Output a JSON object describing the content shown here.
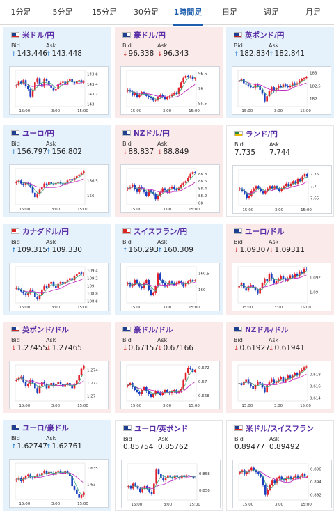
{
  "tabs": [
    {
      "label": "1分足",
      "active": false
    },
    {
      "label": "5分足",
      "active": false
    },
    {
      "label": "15分足",
      "active": false
    },
    {
      "label": "30分足",
      "active": false
    },
    {
      "label": "1時間足",
      "active": true
    },
    {
      "label": "日足",
      "active": false
    },
    {
      "label": "週足",
      "active": false
    },
    {
      "label": "月足",
      "active": false
    }
  ],
  "labels": {
    "bid": "Bid",
    "ask": "Ask"
  },
  "colors": {
    "up": "#1d73c9",
    "down": "#cc2a2a",
    "candle_up": "#e0202a",
    "candle_down": "#1a3fbf",
    "ma_fast": "#3aa67a",
    "ma_slow": "#c030c0",
    "pair_text": "#5a2ea6",
    "active_tab": "#1f5fae"
  },
  "x_ticks": [
    "15:00",
    "3:00",
    "15:00"
  ],
  "cards": [
    {
      "pair": "米ドル/円",
      "bid": "143.446",
      "ask": "143.448",
      "bid_dir": "up",
      "ask_dir": "up",
      "flag": "us-flag-icon",
      "chart_data": {
        "type": "candlestick",
        "yticks": [
          143.6,
          143.4,
          143.2,
          143
        ],
        "ylim": [
          142.95,
          143.68
        ],
        "x_ticks": [
          "15:00",
          "3:00",
          "15:00"
        ],
        "close": [
          143.38,
          143.45,
          143.42,
          143.48,
          143.36,
          143.3,
          143.15,
          143.28,
          143.44,
          143.52,
          143.4,
          143.35,
          143.5,
          143.46,
          143.38,
          143.33,
          143.28,
          143.3,
          143.4,
          143.43,
          143.45,
          143.41,
          143.47,
          143.5,
          143.44,
          143.42,
          143.46,
          143.48,
          143.44,
          143.45
        ]
      }
    },
    {
      "pair": "豪ドル/円",
      "bid": "96.338",
      "ask": "96.343",
      "bid_dir": "down",
      "ask_dir": "down",
      "flag": "australia-flag-icon",
      "chart_data": {
        "type": "candlestick",
        "yticks": [
          96.5,
          96,
          95.5
        ],
        "ylim": [
          95.4,
          96.6
        ],
        "x_ticks": [
          "15:00",
          "3:00",
          "15:00"
        ],
        "close": [
          95.95,
          95.9,
          95.78,
          95.85,
          95.72,
          95.8,
          95.88,
          95.82,
          95.75,
          95.7,
          95.68,
          95.6,
          95.62,
          95.7,
          95.78,
          95.72,
          95.65,
          95.7,
          95.74,
          95.8,
          95.85,
          95.82,
          96.0,
          96.2,
          96.35,
          96.42,
          96.38,
          96.4,
          96.3,
          96.34
        ]
      }
    },
    {
      "pair": "英ポンド/円",
      "bid": "182.834",
      "ask": "182.841",
      "bid_dir": "up",
      "ask_dir": "up",
      "flag": "uk-flag-icon",
      "chart_data": {
        "type": "candlestick",
        "yticks": [
          183,
          182.5,
          182
        ],
        "ylim": [
          181.7,
          183.1
        ],
        "x_ticks": [
          "15:00",
          "3:00",
          "15:00"
        ],
        "close": [
          182.7,
          182.75,
          182.6,
          182.55,
          182.5,
          182.45,
          182.4,
          182.55,
          182.5,
          182.35,
          182.2,
          181.9,
          182.1,
          182.3,
          182.45,
          182.3,
          182.4,
          182.5,
          182.45,
          182.55,
          182.5,
          182.45,
          182.5,
          182.6,
          182.55,
          182.6,
          182.7,
          182.75,
          182.8,
          182.83
        ]
      }
    },
    {
      "pair": "ユーロ/円",
      "bid": "156.797",
      "ask": "156.802",
      "bid_dir": "up",
      "ask_dir": "up",
      "flag": "eu-flag-icon",
      "chart_data": {
        "type": "candlestick",
        "yticks": [
          156.5,
          156
        ],
        "ylim": [
          155.7,
          156.9
        ],
        "x_ticks": [
          "15:00",
          "3:00",
          "15:00"
        ],
        "close": [
          156.45,
          156.5,
          156.4,
          156.35,
          156.42,
          156.38,
          156.3,
          156.1,
          155.95,
          156.05,
          156.2,
          156.3,
          156.4,
          156.35,
          156.45,
          156.4,
          156.38,
          156.42,
          156.45,
          156.4,
          156.38,
          156.42,
          156.5,
          156.55,
          156.5,
          156.6,
          156.65,
          156.7,
          156.75,
          156.8
        ]
      }
    },
    {
      "pair": "NZドル/円",
      "bid": "88.837",
      "ask": "88.849",
      "bid_dir": "down",
      "ask_dir": "down",
      "flag": "nz-flag-icon",
      "chart_data": {
        "type": "candlestick",
        "yticks": [
          88.8,
          88.6,
          88.4,
          88.2,
          88
        ],
        "ylim": [
          87.95,
          88.95
        ],
        "x_ticks": [
          "15:00",
          "3:00",
          "15:00"
        ],
        "close": [
          88.4,
          88.45,
          88.5,
          88.38,
          88.3,
          88.45,
          88.4,
          88.3,
          88.2,
          88.35,
          88.3,
          88.25,
          88.1,
          88.2,
          88.3,
          88.4,
          88.35,
          88.3,
          88.4,
          88.45,
          88.38,
          88.35,
          88.42,
          88.5,
          88.55,
          88.6,
          88.7,
          88.8,
          88.85,
          88.84
        ]
      }
    },
    {
      "pair": "ランド/円",
      "bid": "7.735",
      "ask": "7.744",
      "bid_dir": "none",
      "ask_dir": "none",
      "flag": "south-africa-flag-icon",
      "chart_data": {
        "type": "candlestick",
        "yticks": [
          7.75,
          7.7,
          7.65
        ],
        "ylim": [
          7.62,
          7.77
        ],
        "x_ticks": [
          "15:00",
          "3:00",
          "15:00"
        ],
        "close": [
          7.69,
          7.68,
          7.67,
          7.65,
          7.66,
          7.68,
          7.69,
          7.7,
          7.69,
          7.68,
          7.67,
          7.68,
          7.69,
          7.7,
          7.69,
          7.7,
          7.69,
          7.68,
          7.69,
          7.7,
          7.71,
          7.7,
          7.71,
          7.72,
          7.71,
          7.73,
          7.72,
          7.74,
          7.75,
          7.74
        ]
      }
    },
    {
      "pair": "カナダドル/円",
      "bid": "109.315",
      "ask": "109.330",
      "bid_dir": "up",
      "ask_dir": "up",
      "flag": "canada-flag-icon",
      "chart_data": {
        "type": "candlestick",
        "yticks": [
          109.4,
          109.2,
          109,
          108.8,
          108.6
        ],
        "ylim": [
          108.55,
          109.5
        ],
        "x_ticks": [
          "15:00",
          "3:00",
          "15:00"
        ],
        "close": [
          108.95,
          108.9,
          108.85,
          108.8,
          108.75,
          108.8,
          108.9,
          108.85,
          108.7,
          108.65,
          108.75,
          108.9,
          109.0,
          108.95,
          109.05,
          109.1,
          109.0,
          108.95,
          109.05,
          109.1,
          109.05,
          109.1,
          109.15,
          109.2,
          109.15,
          109.25,
          109.3,
          109.35,
          109.3,
          109.32
        ]
      }
    },
    {
      "pair": "スイスフラン/円",
      "bid": "160.293",
      "ask": "160.309",
      "bid_dir": "up",
      "ask_dir": "up",
      "flag": "swiss-flag-icon",
      "chart_data": {
        "type": "candlestick",
        "yticks": [
          160.5,
          160
        ],
        "ylim": [
          159.6,
          160.7
        ],
        "x_ticks": [
          "15:00",
          "3:00",
          "15:00"
        ],
        "close": [
          160.2,
          160.1,
          160.15,
          160.3,
          160.2,
          160.1,
          160.05,
          160.2,
          160.3,
          160.0,
          159.85,
          159.9,
          160.1,
          160.5,
          160.3,
          160.2,
          160.1,
          160.15,
          160.25,
          160.2,
          160.15,
          160.2,
          160.25,
          160.2,
          160.1,
          160.2,
          160.25,
          160.3,
          160.28,
          160.29
        ]
      }
    },
    {
      "pair": "ユーロ/ドル",
      "bid": "1.09307",
      "ask": "1.09311",
      "bid_dir": "down",
      "ask_dir": "down",
      "flag": "eu-flag-icon",
      "chart_data": {
        "type": "candlestick",
        "yticks": [
          1.092,
          1.09
        ],
        "ylim": [
          1.0885,
          1.0935
        ],
        "x_ticks": [
          "15:00",
          "3:00",
          "15:00"
        ],
        "close": [
          1.0908,
          1.0912,
          1.0905,
          1.0902,
          1.0908,
          1.091,
          1.0906,
          1.0903,
          1.0898,
          1.0905,
          1.0912,
          1.0918,
          1.0915,
          1.0925,
          1.0918,
          1.0912,
          1.0915,
          1.0918,
          1.0922,
          1.0918,
          1.0916,
          1.0919,
          1.0923,
          1.092,
          1.0925,
          1.0922,
          1.0928,
          1.0926,
          1.0932,
          1.0931
        ]
      }
    },
    {
      "pair": "英ポンド/ドル",
      "bid": "1.27455",
      "ask": "1.27465",
      "bid_dir": "down",
      "ask_dir": "down",
      "flag": "uk-flag-icon",
      "chart_data": {
        "type": "candlestick",
        "yticks": [
          1.274,
          1.272,
          1.27
        ],
        "ylim": [
          1.2692,
          1.2748
        ],
        "x_ticks": [
          "15:00",
          "3:00",
          "15:00"
        ],
        "close": [
          1.2725,
          1.2728,
          1.273,
          1.2722,
          1.2715,
          1.2718,
          1.2725,
          1.272,
          1.2712,
          1.2705,
          1.2715,
          1.2722,
          1.2718,
          1.2712,
          1.2716,
          1.272,
          1.2715,
          1.2718,
          1.2722,
          1.2718,
          1.2714,
          1.2717,
          1.272,
          1.2716,
          1.2712,
          1.2718,
          1.2724,
          1.2732,
          1.2742,
          1.2746
        ]
      }
    },
    {
      "pair": "豪ドル/ドル",
      "bid": "0.67157",
      "ask": "0.67166",
      "bid_dir": "down",
      "ask_dir": "down",
      "flag": "australia-flag-icon",
      "chart_data": {
        "type": "candlestick",
        "yticks": [
          0.672,
          0.67,
          0.668
        ],
        "ylim": [
          0.6672,
          0.6724
        ],
        "x_ticks": [
          "15:00",
          "3:00",
          "15:00"
        ],
        "close": [
          0.6695,
          0.6698,
          0.6692,
          0.6688,
          0.6685,
          0.6682,
          0.6688,
          0.6692,
          0.6686,
          0.6682,
          0.6678,
          0.6682,
          0.6686,
          0.6684,
          0.6681,
          0.6684,
          0.6688,
          0.6685,
          0.6683,
          0.6686,
          0.6688,
          0.6684,
          0.6686,
          0.669,
          0.6702,
          0.6712,
          0.672,
          0.6718,
          0.6714,
          0.6716
        ]
      }
    },
    {
      "pair": "NZドル/ドル",
      "bid": "0.61927",
      "ask": "0.61941",
      "bid_dir": "down",
      "ask_dir": "down",
      "flag": "nz-flag-icon",
      "chart_data": {
        "type": "candlestick",
        "yticks": [
          0.618,
          0.616,
          0.614
        ],
        "ylim": [
          0.6135,
          0.6196
        ],
        "x_ticks": [
          "15:00",
          "3:00",
          "15:00"
        ],
        "close": [
          0.6165,
          0.6162,
          0.6168,
          0.6172,
          0.6165,
          0.616,
          0.6155,
          0.6162,
          0.6168,
          0.6165,
          0.6158,
          0.615,
          0.6162,
          0.6168,
          0.6172,
          0.6165,
          0.6168,
          0.6172,
          0.6175,
          0.6168,
          0.6172,
          0.6178,
          0.6174,
          0.6178,
          0.6182,
          0.6178,
          0.6185,
          0.6188,
          0.6192,
          0.6193
        ]
      }
    },
    {
      "pair": "ユーロ/豪ドル",
      "bid": "1.62747",
      "ask": "1.62761",
      "bid_dir": "up",
      "ask_dir": "up",
      "flag": "eu-flag-icon",
      "chart_data": {
        "type": "candlestick",
        "yticks": [
          1.635,
          1.63
        ],
        "ylim": [
          1.6255,
          1.6365
        ],
        "x_ticks": [
          "15:00",
          "3:00",
          "15:00"
        ],
        "close": [
          1.6315,
          1.632,
          1.631,
          1.6318,
          1.6325,
          1.633,
          1.6322,
          1.6318,
          1.6325,
          1.633,
          1.6328,
          1.6335,
          1.634,
          1.6332,
          1.6338,
          1.6335,
          1.633,
          1.6338,
          1.6342,
          1.6336,
          1.6332,
          1.634,
          1.6335,
          1.6325,
          1.6295,
          1.6285,
          1.627,
          1.626,
          1.6268,
          1.6275
        ]
      }
    },
    {
      "pair": "ユーロ/英ポンド",
      "bid": "0.85754",
      "ask": "0.85762",
      "bid_dir": "none",
      "ask_dir": "none",
      "flag": "eu-flag-icon",
      "chart_data": {
        "type": "candlestick",
        "yticks": [
          0.858,
          0.856
        ],
        "ylim": [
          0.8548,
          0.8592
        ],
        "x_ticks": [
          "15:00",
          "3:00",
          "15:00"
        ],
        "close": [
          0.8565,
          0.8562,
          0.8568,
          0.8565,
          0.8562,
          0.8558,
          0.8562,
          0.8565,
          0.8562,
          0.8558,
          0.8555,
          0.8568,
          0.8585,
          0.858,
          0.8575,
          0.8572,
          0.8575,
          0.8578,
          0.8576,
          0.8574,
          0.8578,
          0.8576,
          0.8574,
          0.8578,
          0.8576,
          0.8578,
          0.8577,
          0.8576,
          0.8575,
          0.8575
        ]
      }
    },
    {
      "pair": "米ドル/スイスフラン",
      "bid": "0.89477",
      "ask": "0.89492",
      "bid_dir": "none",
      "ask_dir": "none",
      "flag": "us-flag-icon",
      "chart_data": {
        "type": "candlestick",
        "yticks": [
          0.896,
          0.894,
          0.892
        ],
        "ylim": [
          0.8912,
          0.8968
        ],
        "x_ticks": [
          "15:00",
          "3:00",
          "15:00"
        ],
        "close": [
          0.8955,
          0.8958,
          0.8952,
          0.8955,
          0.8958,
          0.8962,
          0.8958,
          0.8955,
          0.8952,
          0.8948,
          0.8935,
          0.892,
          0.8928,
          0.8935,
          0.8942,
          0.8938,
          0.8945,
          0.8948,
          0.8944,
          0.8942,
          0.8946,
          0.8948,
          0.8944,
          0.8946,
          0.895,
          0.8946,
          0.8948,
          0.8952,
          0.8948,
          0.8948
        ]
      }
    }
  ]
}
